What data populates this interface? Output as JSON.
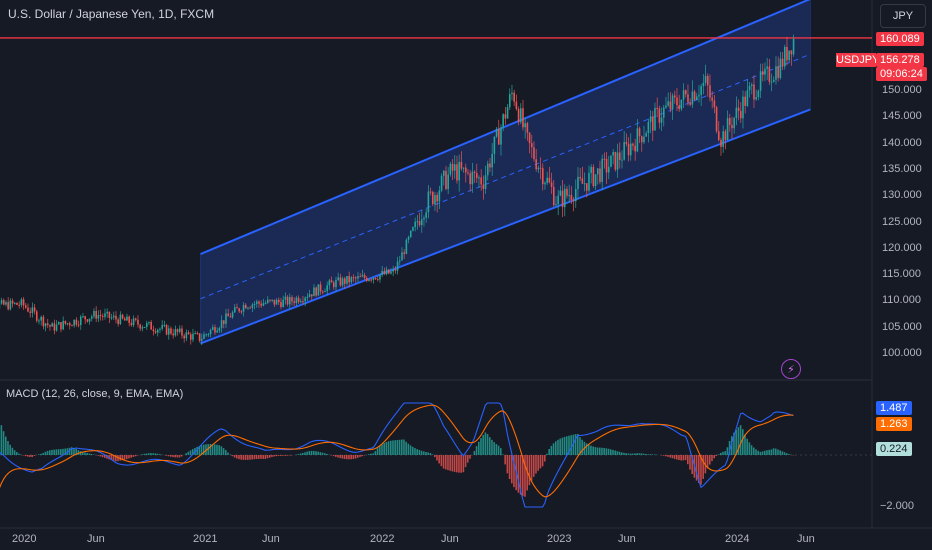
{
  "header": {
    "title": "U.S. Dollar / Japanese Yen, 1D, FXCM",
    "currency": "JPY"
  },
  "price_axis": {
    "ticks": [
      "150.000",
      "145.000",
      "140.000",
      "135.000",
      "130.000",
      "125.000",
      "120.000",
      "115.000",
      "110.000",
      "105.000",
      "100.000"
    ],
    "resistance_label": "160.089",
    "current_price": "156.278",
    "countdown": "09:06:24",
    "ticker": "USDJPY"
  },
  "indicator": {
    "label": "MACD (12, 26, close, 9, EMA, EMA)",
    "macd_value": "1.487",
    "signal_value": "1.263",
    "histogram_value": "0.224",
    "axis_tick": "−2.000"
  },
  "time_axis": [
    "2020",
    "Jun",
    "2021",
    "Jun",
    "2022",
    "Jun",
    "2023",
    "Jun",
    "2024",
    "Jun"
  ],
  "colors": {
    "background": "#161a25",
    "channel": "#2962ff",
    "resistance": "#f23645",
    "up": "#26a69a",
    "down": "#ef5350",
    "macd": "#2962ff",
    "signal": "#ff6d00"
  },
  "chart_data": {
    "type": "line",
    "symbol": "USDJPY",
    "price_path": {
      "x": [
        "2019-10",
        "2020-01",
        "2020-03",
        "2020-06",
        "2020-10",
        "2021-01",
        "2021-04",
        "2021-07",
        "2021-10",
        "2022-02",
        "2022-04",
        "2022-06",
        "2022-08",
        "2022-10",
        "2022-11",
        "2023-01",
        "2023-03",
        "2023-05",
        "2023-08",
        "2023-11",
        "2023-12",
        "2024-02",
        "2024-04",
        "2024-04-29"
      ],
      "y": [
        109,
        109.5,
        105,
        107.5,
        105,
        103,
        109.5,
        110,
        113.5,
        115.5,
        128,
        135,
        133,
        150,
        140,
        129,
        133,
        137,
        146,
        151.5,
        141,
        150,
        155,
        160.1
      ]
    },
    "resistance_level": 160.089,
    "channel": {
      "start": "2021-01",
      "end": "2024-06",
      "upper": [
        119,
        167.5
      ],
      "mid": [
        110.5,
        157
      ],
      "lower": [
        102,
        146.5
      ]
    },
    "macd": {
      "macd": 1.487,
      "signal": 1.263,
      "histogram": 0.224
    },
    "ylim": [
      97,
      165
    ]
  }
}
